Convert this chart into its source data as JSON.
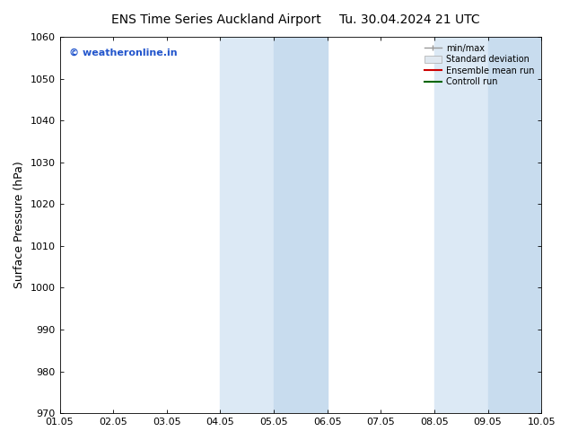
{
  "title_left": "ENS Time Series Auckland Airport",
  "title_right": "Tu. 30.04.2024 21 UTC",
  "ylabel": "Surface Pressure (hPa)",
  "ylim": [
    970,
    1060
  ],
  "yticks": [
    970,
    980,
    990,
    1000,
    1010,
    1020,
    1030,
    1040,
    1050,
    1060
  ],
  "xtick_labels": [
    "01.05",
    "02.05",
    "03.05",
    "04.05",
    "05.05",
    "06.05",
    "07.05",
    "08.05",
    "09.05",
    "10.05"
  ],
  "shaded_bands": [
    {
      "xmin": 3.0,
      "xmax": 4.0,
      "color": "#dce9f5"
    },
    {
      "xmin": 4.0,
      "xmax": 5.0,
      "color": "#c8dcee"
    },
    {
      "xmin": 7.0,
      "xmax": 8.0,
      "color": "#dce9f5"
    },
    {
      "xmin": 8.0,
      "xmax": 9.0,
      "color": "#c8dcee"
    }
  ],
  "watermark": "© weatheronline.in",
  "watermark_color": "#2255cc",
  "legend_items": [
    {
      "label": "min/max",
      "color": "#999999",
      "type": "hline"
    },
    {
      "label": "Standard deviation",
      "color": "#cccccc",
      "type": "box"
    },
    {
      "label": "Ensemble mean run",
      "color": "#cc0000",
      "type": "line"
    },
    {
      "label": "Controll run",
      "color": "#006600",
      "type": "line"
    }
  ],
  "bg_color": "#ffffff",
  "fig_width": 6.34,
  "fig_height": 4.9,
  "dpi": 100,
  "title_fontsize": 10,
  "axis_fontsize": 8,
  "ylabel_fontsize": 9,
  "watermark_fontsize": 8
}
